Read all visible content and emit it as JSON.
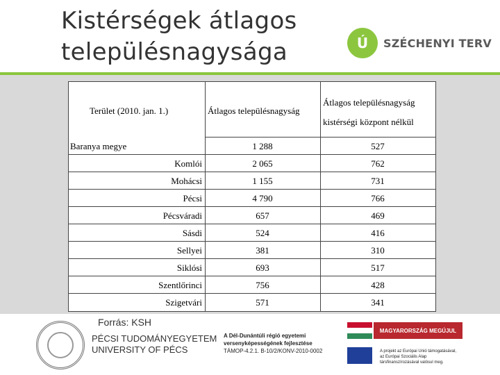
{
  "title": {
    "line1": "Kistérségek átlagos",
    "line2": "településnagysága"
  },
  "logo_top": {
    "mark": "Ú",
    "text": "SZÉCHENYI TERV"
  },
  "table": {
    "headers": {
      "col1": "Terület (2010. jan. 1.)",
      "col2": "Átlagos településnagyság",
      "col3_line1": "Átlagos településnagyság",
      "col3_line2": "kistérségi központ nélkül"
    },
    "rows": [
      {
        "name": "Baranya megye",
        "avg": "1 288",
        "avg_no_center": "527"
      },
      {
        "name": "Komlói",
        "avg": "2 065",
        "avg_no_center": "762"
      },
      {
        "name": "Mohácsi",
        "avg": "1 155",
        "avg_no_center": "731"
      },
      {
        "name": "Pécsi",
        "avg": "4 790",
        "avg_no_center": "766"
      },
      {
        "name": "Pécsváradi",
        "avg": "657",
        "avg_no_center": "469"
      },
      {
        "name": "Sásdi",
        "avg": "524",
        "avg_no_center": "416"
      },
      {
        "name": "Sellyei",
        "avg": "381",
        "avg_no_center": "310"
      },
      {
        "name": "Siklósi",
        "avg": "693",
        "avg_no_center": "517"
      },
      {
        "name": "Szentlőrinci",
        "avg": "756",
        "avg_no_center": "428"
      },
      {
        "name": "Szigetvári",
        "avg": "571",
        "avg_no_center": "341"
      }
    ]
  },
  "source": "Forrás: KSH",
  "footer": {
    "university_line1": "PÉCSI TUDOMÁNYEGYETEM",
    "university_line2": "UNIVERSITY OF PÉCS",
    "project_line1": "A Dél-Dunántúli régió egyetemi",
    "project_line2": "versenyképességének fejlesztése",
    "project_line3": "TÁMOP-4.2.1. B-10/2/KONV-2010-0002",
    "mm_label": "MAGYARORSZÁG MEGÚJUL",
    "eu_line1": "A projekt az Európai Unió támogatásával,",
    "eu_line2": "az Európai Szociális Alap",
    "eu_line3": "társfinanszírozásával valósul meg."
  },
  "colors": {
    "accent_green": "#8cc63f",
    "band_gray": "#d9d9d9",
    "mm_red": "#b8282e",
    "eu_blue": "#1f3f99"
  }
}
